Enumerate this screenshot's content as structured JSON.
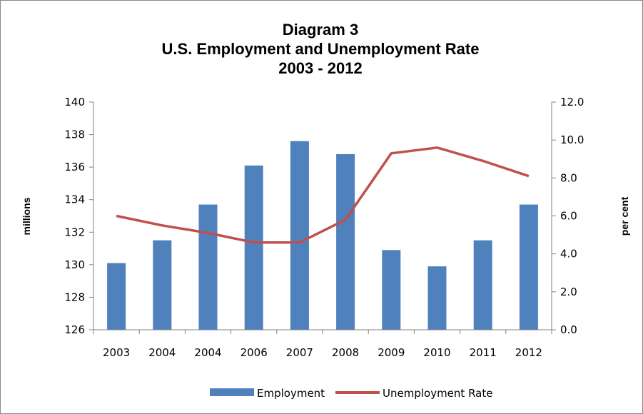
{
  "chart_data": {
    "type": "bar",
    "title_lines": [
      "Diagram 3",
      "U.S. Employment and Unemployment Rate",
      "2003 - 2012"
    ],
    "categories": [
      "2003",
      "2004",
      "2004",
      "2006",
      "2007",
      "2008",
      "2009",
      "2010",
      "2011",
      "2012"
    ],
    "series": [
      {
        "name": "Employment",
        "type": "bar",
        "axis": "left",
        "color": "#4f81bd",
        "values": [
          130.1,
          131.5,
          133.7,
          136.1,
          137.6,
          136.8,
          130.9,
          129.9,
          131.5,
          133.7
        ]
      },
      {
        "name": "Unemployment Rate",
        "type": "line",
        "axis": "right",
        "color": "#c0504d",
        "values": [
          6.0,
          5.5,
          5.1,
          4.6,
          4.6,
          5.8,
          9.3,
          9.6,
          8.9,
          8.1
        ]
      }
    ],
    "ylabel": "millions",
    "ylim": [
      126,
      140
    ],
    "yticks": [
      "126",
      "128",
      "130",
      "132",
      "134",
      "136",
      "138",
      "140"
    ],
    "y2label": "per cent",
    "y2lim": [
      0,
      12
    ],
    "y2ticks": [
      "0.0",
      "2.0",
      "4.0",
      "6.0",
      "8.0",
      "10.0",
      "12.0"
    ],
    "grid": false,
    "legend_position": "bottom"
  }
}
